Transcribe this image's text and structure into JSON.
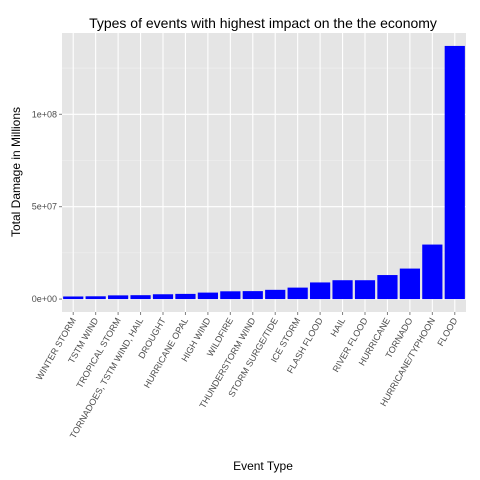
{
  "chart_data": {
    "type": "bar",
    "title": "Types of events with highest impact on the the economy",
    "xlabel": "Event Type",
    "ylabel": "Total Damage in Millions",
    "categories": [
      "WINTER STORM",
      "TSTM WIND",
      "TROPICAL STORM",
      "TORNADOES, TSTM WIND, HAIL",
      "DROUGHT",
      "HURRICANE OPAL",
      "HIGH WIND",
      "WILDFIRE",
      "THUNDERSTORM WIND",
      "STORM SURGE/TIDE",
      "ICE STORM",
      "FLASH FLOOD",
      "HAIL",
      "RIVER FLOOD",
      "HURRICANE",
      "TORNADO",
      "HURRICANE/TYPHOON",
      "FLOOD"
    ],
    "values": [
      1400000,
      1500000,
      2000000,
      2100000,
      2600000,
      2800000,
      3500000,
      4200000,
      4300000,
      5000000,
      6200000,
      9000000,
      10200000,
      10200000,
      13000000,
      16500000,
      29500000,
      137000000
    ],
    "ylim": [
      -7000000,
      144000000
    ],
    "yticks": [
      0,
      50000000,
      100000000
    ],
    "ytick_labels": [
      "0e+00",
      "5e+07",
      "1e+08"
    ],
    "grid": true,
    "colors": {
      "bar": "#0000ff",
      "panel": "#e5e5e5",
      "grid_major": "#ffffff",
      "grid_minor": "#f2f2f2"
    }
  }
}
